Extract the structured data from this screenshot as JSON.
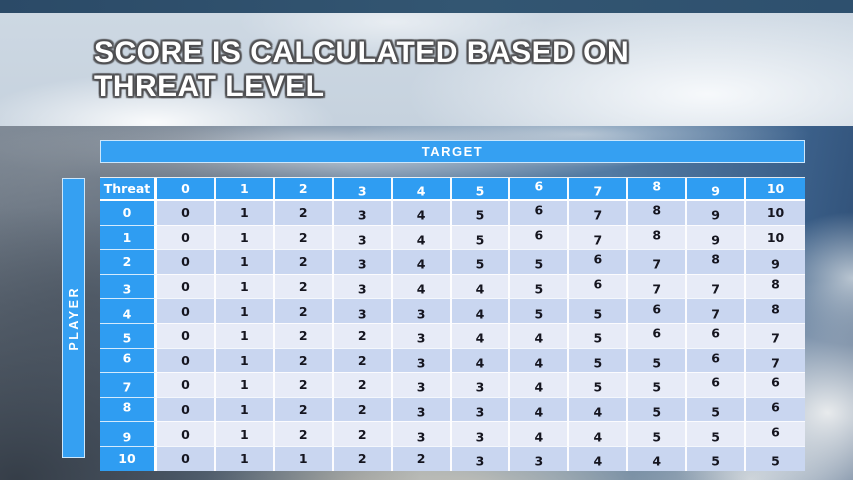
{
  "slide": {
    "title_line1": "SCORE IS CALCULATED BASED ON",
    "title_line2": "THREAT LEVEL"
  },
  "matrix": {
    "target_label": "TARGET",
    "player_label": "PLAYER",
    "corner_label": "Threat",
    "column_headers": [
      "0",
      "1",
      "2",
      "3",
      "4",
      "5",
      "6",
      "7",
      "8",
      "9",
      "10"
    ],
    "rows": [
      {
        "header": "0",
        "values": [
          0,
          1,
          2,
          3,
          4,
          5,
          6,
          7,
          8,
          9,
          10
        ]
      },
      {
        "header": "1",
        "values": [
          0,
          1,
          2,
          3,
          4,
          5,
          6,
          7,
          8,
          9,
          10
        ]
      },
      {
        "header": "2",
        "values": [
          0,
          1,
          2,
          3,
          4,
          5,
          5,
          6,
          7,
          8,
          9
        ]
      },
      {
        "header": "3",
        "values": [
          0,
          1,
          2,
          3,
          4,
          4,
          5,
          6,
          7,
          7,
          8
        ]
      },
      {
        "header": "4",
        "values": [
          0,
          1,
          2,
          3,
          3,
          4,
          5,
          5,
          6,
          7,
          8
        ]
      },
      {
        "header": "5",
        "values": [
          0,
          1,
          2,
          2,
          3,
          4,
          4,
          5,
          6,
          6,
          7
        ]
      },
      {
        "header": "6",
        "values": [
          0,
          1,
          2,
          2,
          3,
          4,
          4,
          5,
          5,
          6,
          7
        ]
      },
      {
        "header": "7",
        "values": [
          0,
          1,
          2,
          2,
          3,
          3,
          4,
          5,
          5,
          6,
          6
        ]
      },
      {
        "header": "8",
        "values": [
          0,
          1,
          2,
          2,
          3,
          3,
          4,
          4,
          5,
          5,
          6
        ]
      },
      {
        "header": "9",
        "values": [
          0,
          1,
          2,
          2,
          3,
          3,
          4,
          4,
          5,
          5,
          6
        ]
      },
      {
        "header": "10",
        "values": [
          0,
          1,
          1,
          2,
          2,
          3,
          3,
          4,
          4,
          5,
          5
        ]
      }
    ]
  },
  "colors": {
    "accent_blue": "#2F9DF2",
    "row_shade_dark": "#C9D6F0",
    "row_shade_light": "#E7EBF7",
    "top_bar": "#2F4E6B",
    "title_band": "#CBD6E2",
    "cell_text": "#15151F",
    "header_text": "#FFFFFF"
  }
}
